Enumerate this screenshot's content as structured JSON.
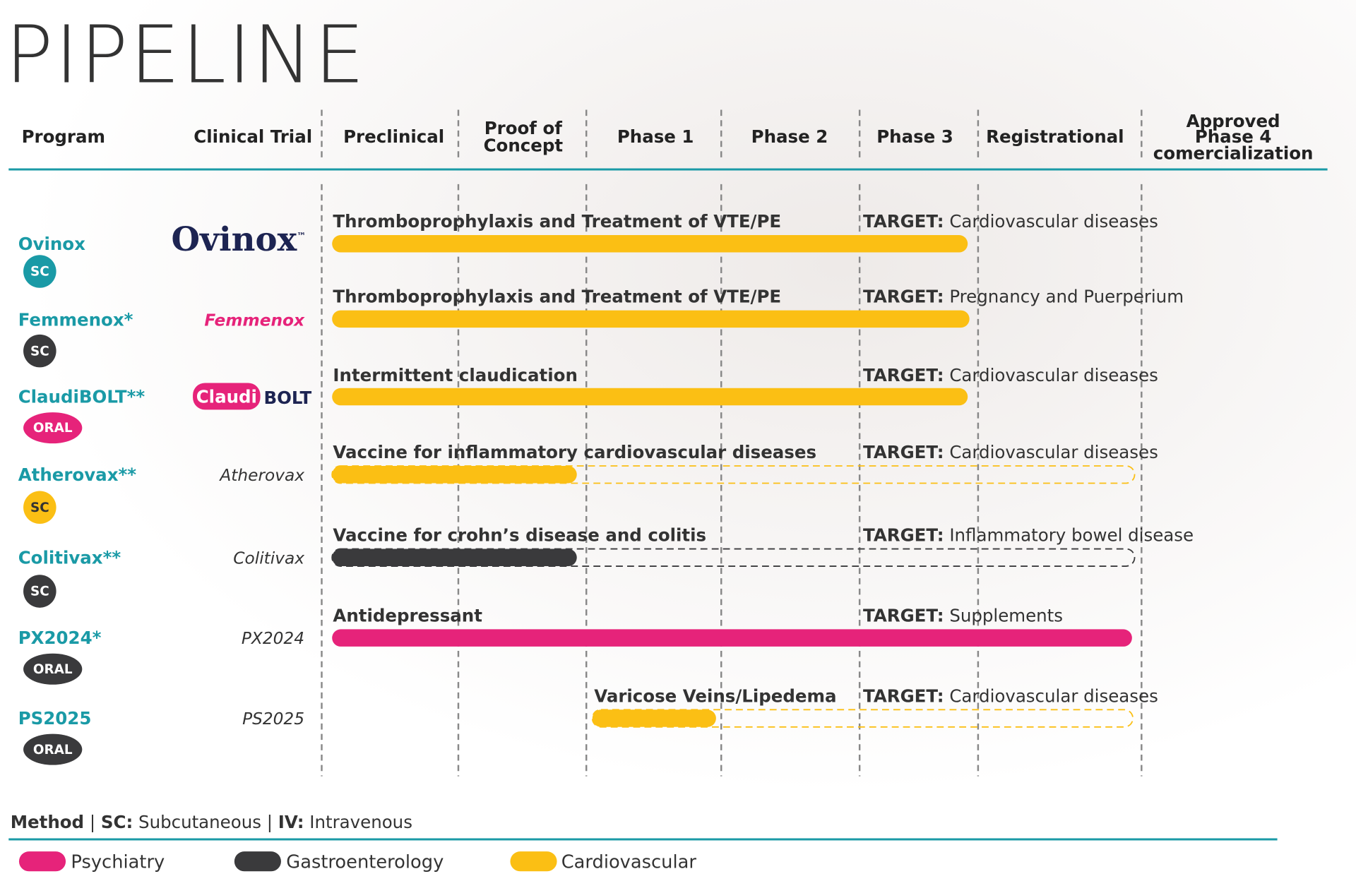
{
  "title": "PIPELINE",
  "columns": [
    [
      "Program"
    ],
    [
      "Clinical Trial"
    ],
    [
      "Preclinical"
    ],
    [
      "Proof of",
      "Concept"
    ],
    [
      "Phase 1"
    ],
    [
      "Phase 2"
    ],
    [
      "Phase 3"
    ],
    [
      "Registrational"
    ],
    [
      "Approved",
      "Phase 4",
      "comercialization"
    ]
  ],
  "programs": [
    {
      "name": "Ovinox",
      "method": "SC",
      "trial": [
        "Ovinox",
        "™"
      ],
      "indication": "Thromboprophylaxis and Treatment of VTE/PE",
      "target_label": "TARGET:",
      "target": "Cardiovascular diseases"
    },
    {
      "name": "Femmenox*",
      "method": "SC",
      "trial": [
        "Femmenox"
      ],
      "indication": "Thromboprophylaxis and Treatment of VTE/PE",
      "target_label": "TARGET:",
      "target": "Pregnancy and Puerperium"
    },
    {
      "name": "ClaudiBOLT**",
      "method": "ORAL",
      "trial": [
        "Claudi",
        "BOLT"
      ],
      "indication": "Intermittent claudication",
      "target_label": "TARGET:",
      "target": "Cardiovascular diseases"
    },
    {
      "name": "Atherovax**",
      "method": "SC",
      "trial": [
        "Atherovax"
      ],
      "indication": "Vaccine for inflammatory cardiovascular diseases",
      "target_label": "TARGET:",
      "target": "Cardiovascular diseases"
    },
    {
      "name": "Colitivax**",
      "method": "SC",
      "trial": [
        "Colitivax"
      ],
      "indication": "Vaccine for crohn’s disease and colitis",
      "target_label": "TARGET:",
      "target": "Inflammatory bowel disease"
    },
    {
      "name": "PX2024*",
      "method": "ORAL",
      "trial": [
        "PX2024"
      ],
      "indication": "Antidepressant",
      "target_label": "TARGET:",
      "target": "Supplements"
    },
    {
      "name": "PS2025",
      "method": "ORAL",
      "trial": [
        "PS2025"
      ],
      "indication": "Varicose Veins/Lipedema",
      "target_label": "TARGET:",
      "target": "Cardiovascular diseases"
    }
  ],
  "footer": {
    "method_label": "Method",
    "sep": "|",
    "sc_label": "SC:",
    "sc": "Subcutaneous",
    "iv_label": "IV:",
    "iv": "Intravenous"
  },
  "legend": [
    {
      "name": "Psychiatry",
      "color": "#e6237a"
    },
    {
      "name": "Gastroenterology",
      "color": "#3a3a3c"
    },
    {
      "name": "Cardiovascular",
      "color": "#fbbf14"
    }
  ]
}
